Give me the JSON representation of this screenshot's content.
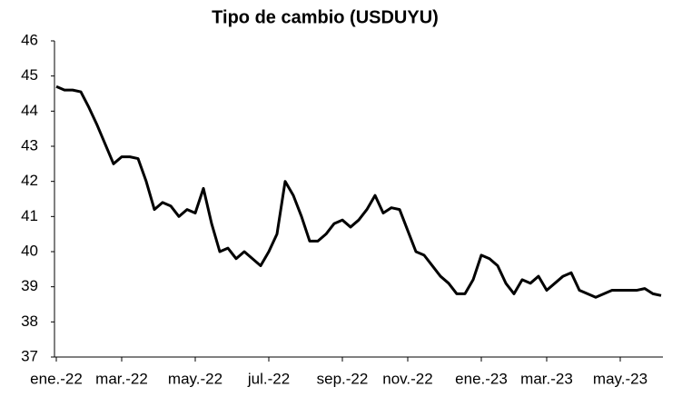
{
  "chart_data": {
    "type": "line",
    "title": "Tipo de cambio (USDUYU)",
    "categories": [
      "ene.-22",
      null,
      null,
      null,
      null,
      null,
      null,
      null,
      "mar.-22",
      null,
      null,
      null,
      null,
      null,
      null,
      null,
      null,
      "may.-22",
      null,
      null,
      null,
      null,
      null,
      null,
      null,
      null,
      "jul.-22",
      null,
      null,
      null,
      null,
      null,
      null,
      null,
      null,
      "sep.-22",
      null,
      null,
      null,
      null,
      null,
      null,
      null,
      "nov.-22",
      null,
      null,
      null,
      null,
      null,
      null,
      null,
      null,
      "ene.-23",
      null,
      null,
      null,
      null,
      null,
      null,
      null,
      "mar.-23",
      null,
      null,
      null,
      null,
      null,
      null,
      null,
      null,
      "may.-23",
      null,
      null,
      null,
      null,
      null
    ],
    "values": [
      44.7,
      44.6,
      44.6,
      44.55,
      44.1,
      43.6,
      43.05,
      42.5,
      42.7,
      42.7,
      42.65,
      42.0,
      41.2,
      41.4,
      41.3,
      41.0,
      41.2,
      41.1,
      41.8,
      40.8,
      40.0,
      40.1,
      39.8,
      40.0,
      39.8,
      39.6,
      40.0,
      40.5,
      42.0,
      41.6,
      41.0,
      40.3,
      40.3,
      40.5,
      40.8,
      40.9,
      40.7,
      40.9,
      41.2,
      41.6,
      41.1,
      41.25,
      41.2,
      40.6,
      40.0,
      39.9,
      39.6,
      39.3,
      39.1,
      38.8,
      38.8,
      39.2,
      39.9,
      39.8,
      39.6,
      39.1,
      38.8,
      39.2,
      39.1,
      39.3,
      38.9,
      39.1,
      39.3,
      39.4,
      38.9,
      38.8,
      38.7,
      38.8,
      38.9,
      38.9,
      38.9,
      38.9,
      38.95,
      38.8,
      38.75
    ],
    "color": "#000000",
    "ylim": [
      37,
      46
    ],
    "yticks": [
      37,
      38,
      39,
      40,
      41,
      42,
      43,
      44,
      45,
      46
    ],
    "grid": false
  }
}
